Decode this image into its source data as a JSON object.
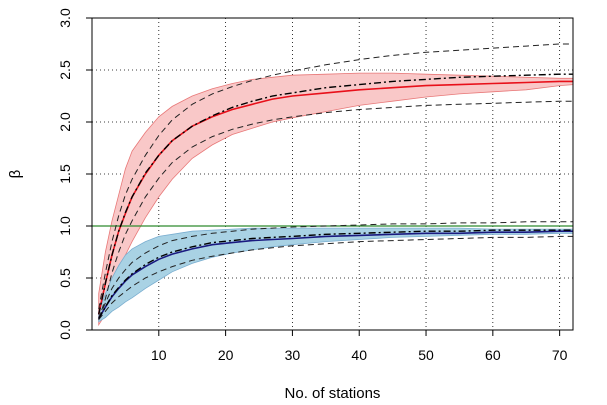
{
  "chart_data": {
    "type": "line",
    "title": "",
    "xlabel": "No. of stations",
    "ylabel": "β",
    "xlim": [
      0,
      72
    ],
    "ylim": [
      0,
      3.0
    ],
    "x_ticks": [
      10,
      20,
      30,
      40,
      50,
      60,
      70
    ],
    "y_ticks": [
      "0.0",
      "0.5",
      "1.0",
      "1.5",
      "2.0",
      "2.5",
      "3.0"
    ],
    "grid": "dotted",
    "reference_line": {
      "y": 1.0,
      "color": "#2e8b2e"
    },
    "series": [
      {
        "name": "red-group",
        "line_color": "#e8101a",
        "band_color": "#f9c8c8",
        "band_edge": "#e87878",
        "x": [
          1,
          2,
          3,
          4,
          5,
          6,
          8,
          10,
          12,
          15,
          18,
          21,
          24,
          27,
          30,
          35,
          40,
          45,
          50,
          55,
          60,
          65,
          70,
          72
        ],
        "mean": [
          0.15,
          0.45,
          0.72,
          0.95,
          1.12,
          1.28,
          1.5,
          1.68,
          1.82,
          1.96,
          2.05,
          2.12,
          2.17,
          2.22,
          2.25,
          2.28,
          2.31,
          2.33,
          2.35,
          2.36,
          2.37,
          2.38,
          2.39,
          2.39
        ],
        "band_upper": [
          0.35,
          0.75,
          1.05,
          1.3,
          1.55,
          1.72,
          1.9,
          2.05,
          2.15,
          2.25,
          2.32,
          2.37,
          2.41,
          2.43,
          2.45,
          2.46,
          2.47,
          2.47,
          2.46,
          2.45,
          2.44,
          2.43,
          2.42,
          2.42
        ],
        "band_lower": [
          0.05,
          0.15,
          0.35,
          0.55,
          0.72,
          0.85,
          1.08,
          1.28,
          1.45,
          1.65,
          1.78,
          1.88,
          1.94,
          2.0,
          2.04,
          2.1,
          2.16,
          2.2,
          2.24,
          2.27,
          2.29,
          2.31,
          2.35,
          2.36
        ],
        "dashed_upper": [
          0.2,
          0.55,
          0.85,
          1.1,
          1.3,
          1.45,
          1.68,
          1.87,
          2.02,
          2.17,
          2.27,
          2.34,
          2.4,
          2.45,
          2.49,
          2.55,
          2.6,
          2.64,
          2.67,
          2.69,
          2.71,
          2.73,
          2.75,
          2.75
        ],
        "dashed_lower": [
          0.1,
          0.3,
          0.55,
          0.75,
          0.92,
          1.05,
          1.28,
          1.46,
          1.61,
          1.76,
          1.86,
          1.93,
          1.98,
          2.02,
          2.05,
          2.09,
          2.12,
          2.14,
          2.16,
          2.17,
          2.18,
          2.19,
          2.2,
          2.2
        ],
        "dashdot": [
          0.15,
          0.45,
          0.72,
          0.95,
          1.13,
          1.28,
          1.51,
          1.68,
          1.82,
          1.96,
          2.06,
          2.14,
          2.2,
          2.25,
          2.28,
          2.33,
          2.36,
          2.39,
          2.41,
          2.43,
          2.44,
          2.45,
          2.46,
          2.46
        ]
      },
      {
        "name": "blue-group",
        "line_color": "#1a1a80",
        "band_color": "#a9d2e4",
        "band_edge": "#7aaed0",
        "x": [
          1,
          2,
          3,
          4,
          5,
          6,
          8,
          10,
          12,
          15,
          18,
          21,
          24,
          27,
          30,
          35,
          40,
          45,
          50,
          55,
          60,
          65,
          70,
          72
        ],
        "mean": [
          0.11,
          0.22,
          0.32,
          0.4,
          0.47,
          0.53,
          0.61,
          0.68,
          0.73,
          0.78,
          0.82,
          0.84,
          0.86,
          0.87,
          0.88,
          0.9,
          0.91,
          0.92,
          0.93,
          0.93,
          0.94,
          0.94,
          0.95,
          0.95
        ],
        "band_upper": [
          0.18,
          0.35,
          0.5,
          0.62,
          0.72,
          0.78,
          0.85,
          0.9,
          0.92,
          0.95,
          0.96,
          0.97,
          0.98,
          0.98,
          0.98,
          0.98,
          0.98,
          0.98,
          0.98,
          0.98,
          0.97,
          0.97,
          0.97,
          0.97
        ],
        "band_lower": [
          0.08,
          0.12,
          0.18,
          0.22,
          0.27,
          0.31,
          0.4,
          0.48,
          0.56,
          0.64,
          0.7,
          0.74,
          0.77,
          0.8,
          0.82,
          0.85,
          0.87,
          0.89,
          0.9,
          0.91,
          0.92,
          0.92,
          0.93,
          0.93
        ],
        "dashed_upper": [
          0.12,
          0.26,
          0.4,
          0.5,
          0.58,
          0.65,
          0.74,
          0.81,
          0.86,
          0.9,
          0.93,
          0.95,
          0.97,
          0.98,
          0.99,
          1.0,
          1.01,
          1.02,
          1.02,
          1.03,
          1.03,
          1.04,
          1.04,
          1.04
        ],
        "dashed_lower": [
          0.1,
          0.18,
          0.26,
          0.32,
          0.37,
          0.42,
          0.5,
          0.56,
          0.61,
          0.67,
          0.71,
          0.74,
          0.77,
          0.79,
          0.81,
          0.83,
          0.85,
          0.86,
          0.87,
          0.88,
          0.89,
          0.89,
          0.9,
          0.9
        ],
        "dashdot": [
          0.11,
          0.22,
          0.33,
          0.41,
          0.48,
          0.54,
          0.63,
          0.7,
          0.75,
          0.8,
          0.84,
          0.86,
          0.88,
          0.89,
          0.9,
          0.92,
          0.93,
          0.94,
          0.95,
          0.95,
          0.96,
          0.96,
          0.96,
          0.96
        ]
      }
    ]
  }
}
